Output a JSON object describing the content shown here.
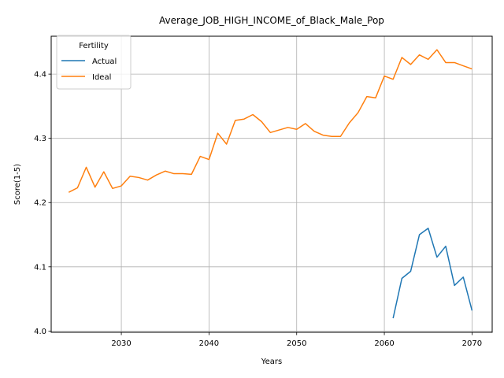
{
  "chart_data": {
    "type": "line",
    "title": "Average_JOB_HIGH_INCOME_of_Black_Male_Pop",
    "xlabel": "Years",
    "ylabel": "Score(1-5)",
    "xlim": [
      2022,
      2072.3
    ],
    "ylim": [
      3.998,
      4.459
    ],
    "xticks": [
      2030,
      2040,
      2050,
      2060,
      2070
    ],
    "yticks": [
      4.0,
      4.1,
      4.2,
      4.3,
      4.4
    ],
    "ytick_labels": [
      "4.0",
      "4.1",
      "4.2",
      "4.3",
      "4.4"
    ],
    "grid": true,
    "legend": {
      "title": "Fertility",
      "placement": "top-left"
    },
    "series": [
      {
        "name": "Actual",
        "color": "#1f77b4",
        "x": [
          2061,
          2062,
          2063,
          2064,
          2065,
          2066,
          2067,
          2068,
          2069,
          2070
        ],
        "values": [
          4.02,
          4.082,
          4.093,
          4.15,
          4.16,
          4.115,
          4.132,
          4.071,
          4.084,
          4.032
        ]
      },
      {
        "name": "Ideal",
        "color": "#ff7f0e",
        "x": [
          2024,
          2025,
          2026,
          2027,
          2028,
          2029,
          2030,
          2031,
          2032,
          2033,
          2034,
          2035,
          2036,
          2037,
          2038,
          2039,
          2040,
          2041,
          2042,
          2043,
          2044,
          2045,
          2046,
          2047,
          2048,
          2049,
          2050,
          2051,
          2052,
          2053,
          2054,
          2055,
          2056,
          2057,
          2058,
          2059,
          2060,
          2061,
          2062,
          2063,
          2064,
          2065,
          2066,
          2067,
          2068,
          2069,
          2070
        ],
        "values": [
          4.216,
          4.223,
          4.255,
          4.224,
          4.248,
          4.222,
          4.226,
          4.241,
          4.239,
          4.235,
          4.243,
          4.249,
          4.245,
          4.245,
          4.244,
          4.272,
          4.267,
          4.308,
          4.291,
          4.328,
          4.33,
          4.337,
          4.326,
          4.309,
          4.313,
          4.317,
          4.314,
          4.323,
          4.311,
          4.305,
          4.303,
          4.303,
          4.324,
          4.34,
          4.365,
          4.363,
          4.397,
          4.392,
          4.426,
          4.415,
          4.43,
          4.423,
          4.438,
          4.418,
          4.418,
          4.413,
          4.408
        ]
      }
    ]
  }
}
